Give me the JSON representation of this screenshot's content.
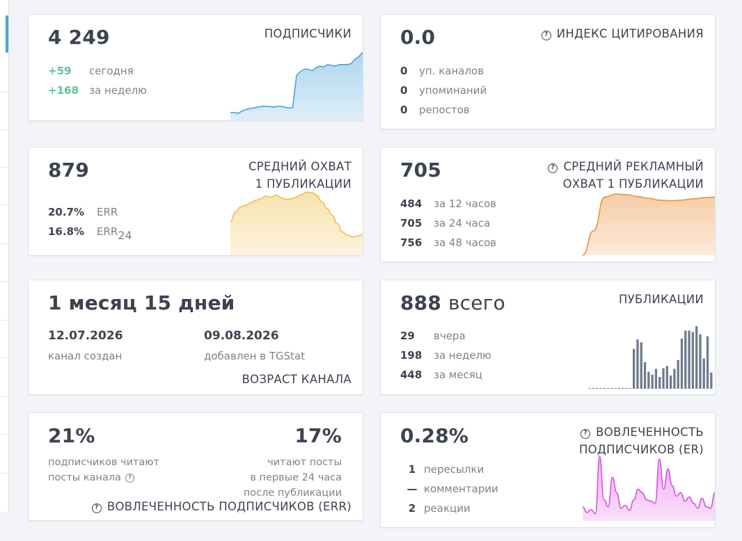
{
  "colors": {
    "subscribers_line": "#4aa3d8",
    "reach_line": "#efbf49",
    "ad_reach_line": "#ec8f3a",
    "posts_bars": "#6f7a8c",
    "er_line": "#d94fe0",
    "positive": "#5cc592"
  },
  "subscribers": {
    "value": "4 249",
    "title": "ПОДПИСЧИКИ",
    "rows": [
      {
        "value": "+59",
        "label": "сегодня"
      },
      {
        "value": "+168",
        "label": "за неделю"
      }
    ],
    "chart_data": {
      "type": "area",
      "values": [
        10,
        10,
        9,
        12,
        14,
        15,
        16,
        17,
        18,
        18,
        18,
        17,
        18,
        18,
        17,
        16,
        16,
        58,
        63,
        66,
        66,
        64,
        68,
        70,
        69,
        72,
        71,
        70,
        72,
        72,
        72,
        73,
        79,
        82,
        88
      ]
    }
  },
  "citation": {
    "value": "0.0",
    "title": "ИНДЕКС ЦИТИРОВАНИЯ",
    "help_icon": "question-circle-icon",
    "rows": [
      {
        "value": "0",
        "label": "уп. каналов"
      },
      {
        "value": "0",
        "label": "упоминаний"
      },
      {
        "value": "0",
        "label": "репостов"
      }
    ]
  },
  "avg_reach": {
    "value": "879",
    "title_line1": "СРЕДНИЙ ОХВАТ",
    "title_line2": "1 ПУБЛИКАЦИИ",
    "err_value": "20.7%",
    "err_label": "ERR",
    "err24_value": "16.8%",
    "err24_label": "ERR",
    "err24_sub": "24",
    "chart_data": {
      "type": "area",
      "values": [
        40,
        52,
        58,
        60,
        63,
        66,
        68,
        71,
        70,
        72,
        69,
        67,
        68,
        70,
        73,
        76,
        75,
        72,
        64,
        56,
        48,
        38,
        28,
        24,
        22,
        23,
        25
      ]
    }
  },
  "ad_reach": {
    "value": "705",
    "title_line1": "СРЕДНИЙ РЕКЛАМНЫЙ",
    "title_line2": "ОХВАТ 1 ПУБЛИКАЦИИ",
    "help_icon": "question-circle-icon",
    "rows": [
      {
        "value": "484",
        "label": "за 12 часов"
      },
      {
        "value": "705",
        "label": "за 24 часа"
      },
      {
        "value": "756",
        "label": "за 48 часов"
      }
    ],
    "chart_data": {
      "type": "area",
      "values": [
        0,
        40,
        95,
        100,
        99,
        96,
        93,
        90,
        89,
        90,
        92,
        94,
        95
      ]
    }
  },
  "channel_age": {
    "value": "1 месяц 15 дней",
    "created_date": "12.07.2026",
    "created_label": "канал создан",
    "added_date": "09.08.2026",
    "added_label": "добавлен в TGStat",
    "title": "ВОЗРАСТ КАНАЛА"
  },
  "publications": {
    "value": "888",
    "value_suffix": "всего",
    "title": "ПУБЛИКАЦИИ",
    "rows": [
      {
        "value": "29",
        "label": "вчера"
      },
      {
        "value": "198",
        "label": "за неделю"
      },
      {
        "value": "448",
        "label": "за месяц"
      }
    ],
    "chart_data": {
      "type": "bar",
      "values": [
        0,
        0,
        0,
        0,
        0,
        0,
        0,
        0,
        0,
        0,
        0,
        0,
        54,
        67,
        63,
        36,
        23,
        19,
        27,
        16,
        28,
        31,
        18,
        27,
        39,
        68,
        79,
        79,
        77,
        85,
        74,
        41,
        71,
        22
      ]
    }
  },
  "err": {
    "left_value": "21%",
    "left_line1": "подписчиков читают",
    "left_line2": "посты канала",
    "right_value": "17%",
    "right_line1": "читают посты",
    "right_line2": "в первые 24 часа",
    "right_line3": "после публикации",
    "title": "ВОВЛЕЧЕННОСТЬ ПОДПИСЧИКОВ (ERR)",
    "help_icon": "question-circle-icon"
  },
  "er": {
    "value": "0.28%",
    "title_line1": "ВОВЛЕЧЕННОСТЬ",
    "title_line2": "ПОДПИСЧИКОВ (ER)",
    "help_icon": "question-circle-icon",
    "rows": [
      {
        "value": "1",
        "label": "пересылки"
      },
      {
        "value": "—",
        "label": "комментарии"
      },
      {
        "value": "2",
        "label": "реакции"
      }
    ],
    "chart_data": {
      "type": "area",
      "values": [
        20,
        12,
        16,
        10,
        92,
        30,
        20,
        62,
        40,
        18,
        22,
        15,
        30,
        45,
        40,
        30,
        28,
        25,
        88,
        45,
        74,
        50,
        35,
        40,
        28,
        34,
        25,
        18,
        32,
        20,
        18,
        40
      ]
    }
  }
}
